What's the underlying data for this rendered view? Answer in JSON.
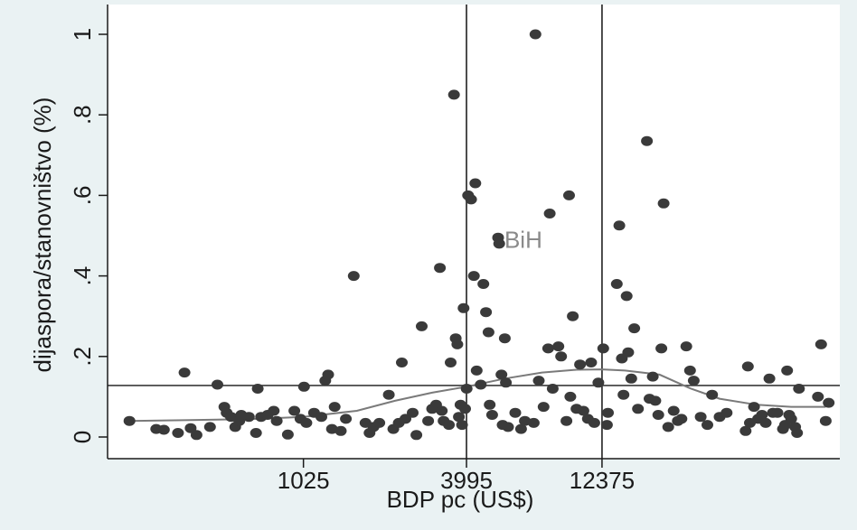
{
  "chart_data": {
    "type": "scatter",
    "title": "",
    "xlabel": "BDP pc (US$)",
    "ylabel": "dijaspora/stanovništvo (%)",
    "x_scale": "log",
    "xlim": [
      200,
      90000
    ],
    "ylim": [
      0,
      1
    ],
    "x_ticks": [
      {
        "value": 1025,
        "label": "1025"
      },
      {
        "value": 3995,
        "label": "3995"
      },
      {
        "value": 12375,
        "label": "12375"
      }
    ],
    "y_ticks": [
      {
        "value": 0,
        "label": "0"
      },
      {
        "value": 0.2,
        "label": ".2"
      },
      {
        "value": 0.4,
        "label": ".4"
      },
      {
        "value": 0.6,
        "label": ".6"
      },
      {
        "value": 0.8,
        "label": ".8"
      },
      {
        "value": 1,
        "label": "1"
      }
    ],
    "grid": false,
    "reference_lines": {
      "vertical_x": [
        3995,
        12375
      ],
      "horizontal_y": [
        0.128
      ]
    },
    "marker_color": "#3a3a3a",
    "line_color": "#7a7a7a",
    "annotations": [
      {
        "text": "BiH",
        "x": 5400,
        "y": 0.49
      }
    ],
    "smooth_line": [
      [
        240,
        0.04
      ],
      [
        400,
        0.042
      ],
      [
        700,
        0.045
      ],
      [
        1025,
        0.05
      ],
      [
        1600,
        0.065
      ],
      [
        2200,
        0.09
      ],
      [
        3000,
        0.11
      ],
      [
        3995,
        0.125
      ],
      [
        5500,
        0.145
      ],
      [
        7500,
        0.16
      ],
      [
        10000,
        0.167
      ],
      [
        12375,
        0.168
      ],
      [
        15000,
        0.165
      ],
      [
        20000,
        0.155
      ],
      [
        26000,
        0.12
      ],
      [
        33000,
        0.095
      ],
      [
        45000,
        0.08
      ],
      [
        60000,
        0.075
      ],
      [
        80000,
        0.075
      ]
    ],
    "points": [
      [
        240,
        0.04
      ],
      [
        300,
        0.02
      ],
      [
        320,
        0.018
      ],
      [
        360,
        0.01
      ],
      [
        380,
        0.16
      ],
      [
        400,
        0.022
      ],
      [
        420,
        0.005
      ],
      [
        470,
        0.025
      ],
      [
        500,
        0.13
      ],
      [
        530,
        0.075
      ],
      [
        540,
        0.06
      ],
      [
        560,
        0.05
      ],
      [
        580,
        0.025
      ],
      [
        600,
        0.04
      ],
      [
        610,
        0.055
      ],
      [
        650,
        0.05
      ],
      [
        690,
        0.01
      ],
      [
        700,
        0.12
      ],
      [
        720,
        0.05
      ],
      [
        760,
        0.055
      ],
      [
        800,
        0.065
      ],
      [
        820,
        0.04
      ],
      [
        900,
        0.006
      ],
      [
        950,
        0.065
      ],
      [
        1000,
        0.045
      ],
      [
        1030,
        0.125
      ],
      [
        1050,
        0.035
      ],
      [
        1120,
        0.06
      ],
      [
        1190,
        0.05
      ],
      [
        1230,
        0.14
      ],
      [
        1260,
        0.155
      ],
      [
        1300,
        0.02
      ],
      [
        1330,
        0.075
      ],
      [
        1400,
        0.015
      ],
      [
        1460,
        0.045
      ],
      [
        1560,
        0.4
      ],
      [
        1720,
        0.035
      ],
      [
        1780,
        0.01
      ],
      [
        1840,
        0.025
      ],
      [
        1930,
        0.035
      ],
      [
        2090,
        0.105
      ],
      [
        2170,
        0.02
      ],
      [
        2270,
        0.035
      ],
      [
        2330,
        0.185
      ],
      [
        2400,
        0.045
      ],
      [
        2550,
        0.06
      ],
      [
        2630,
        0.005
      ],
      [
        2750,
        0.275
      ],
      [
        2900,
        0.04
      ],
      [
        3000,
        0.07
      ],
      [
        3100,
        0.08
      ],
      [
        3200,
        0.42
      ],
      [
        3250,
        0.065
      ],
      [
        3300,
        0.04
      ],
      [
        3450,
        0.03
      ],
      [
        3500,
        0.185
      ],
      [
        3600,
        0.85
      ],
      [
        3650,
        0.245
      ],
      [
        3700,
        0.23
      ],
      [
        3750,
        0.05
      ],
      [
        3800,
        0.08
      ],
      [
        3850,
        0.03
      ],
      [
        3900,
        0.32
      ],
      [
        3950,
        0.07
      ],
      [
        4000,
        0.12
      ],
      [
        4050,
        0.6
      ],
      [
        4150,
        0.59
      ],
      [
        4250,
        0.4
      ],
      [
        4300,
        0.63
      ],
      [
        4350,
        0.165
      ],
      [
        4500,
        0.13
      ],
      [
        4600,
        0.38
      ],
      [
        4700,
        0.31
      ],
      [
        4800,
        0.26
      ],
      [
        4850,
        0.08
      ],
      [
        4950,
        0.055
      ],
      [
        5200,
        0.495
      ],
      [
        5250,
        0.48
      ],
      [
        5350,
        0.155
      ],
      [
        5400,
        0.03
      ],
      [
        5500,
        0.245
      ],
      [
        5550,
        0.135
      ],
      [
        5650,
        0.025
      ],
      [
        6000,
        0.06
      ],
      [
        6300,
        0.02
      ],
      [
        6500,
        0.04
      ],
      [
        7000,
        0.035
      ],
      [
        7100,
        1.0
      ],
      [
        7300,
        0.14
      ],
      [
        7600,
        0.075
      ],
      [
        7900,
        0.22
      ],
      [
        8000,
        0.555
      ],
      [
        8200,
        0.12
      ],
      [
        8600,
        0.225
      ],
      [
        8800,
        0.2
      ],
      [
        9200,
        0.04
      ],
      [
        9400,
        0.6
      ],
      [
        9500,
        0.1
      ],
      [
        9700,
        0.3
      ],
      [
        10000,
        0.07
      ],
      [
        10300,
        0.18
      ],
      [
        10600,
        0.065
      ],
      [
        11000,
        0.045
      ],
      [
        11300,
        0.185
      ],
      [
        11600,
        0.035
      ],
      [
        12000,
        0.135
      ],
      [
        12500,
        0.22
      ],
      [
        12900,
        0.03
      ],
      [
        13000,
        0.06
      ],
      [
        14000,
        0.38
      ],
      [
        14300,
        0.525
      ],
      [
        14600,
        0.195
      ],
      [
        14800,
        0.105
      ],
      [
        15200,
        0.35
      ],
      [
        15400,
        0.21
      ],
      [
        15800,
        0.145
      ],
      [
        16200,
        0.27
      ],
      [
        16700,
        0.07
      ],
      [
        18000,
        0.735
      ],
      [
        18400,
        0.095
      ],
      [
        18900,
        0.15
      ],
      [
        19300,
        0.09
      ],
      [
        19800,
        0.055
      ],
      [
        20300,
        0.22
      ],
      [
        20700,
        0.58
      ],
      [
        21500,
        0.025
      ],
      [
        22500,
        0.065
      ],
      [
        23300,
        0.04
      ],
      [
        24000,
        0.045
      ],
      [
        25000,
        0.225
      ],
      [
        25800,
        0.165
      ],
      [
        26600,
        0.14
      ],
      [
        28200,
        0.05
      ],
      [
        29800,
        0.03
      ],
      [
        31000,
        0.105
      ],
      [
        33000,
        0.05
      ],
      [
        35000,
        0.06
      ],
      [
        41000,
        0.015
      ],
      [
        41800,
        0.175
      ],
      [
        42500,
        0.035
      ],
      [
        44000,
        0.075
      ],
      [
        45500,
        0.045
      ],
      [
        47000,
        0.055
      ],
      [
        48500,
        0.035
      ],
      [
        50000,
        0.145
      ],
      [
        51500,
        0.06
      ],
      [
        53500,
        0.06
      ],
      [
        56000,
        0.02
      ],
      [
        57000,
        0.03
      ],
      [
        58000,
        0.165
      ],
      [
        59000,
        0.055
      ],
      [
        60000,
        0.045
      ],
      [
        62000,
        0.025
      ],
      [
        63000,
        0.01
      ],
      [
        64000,
        0.12
      ],
      [
        75000,
        0.1
      ],
      [
        77000,
        0.23
      ],
      [
        80000,
        0.04
      ],
      [
        82000,
        0.085
      ]
    ]
  }
}
